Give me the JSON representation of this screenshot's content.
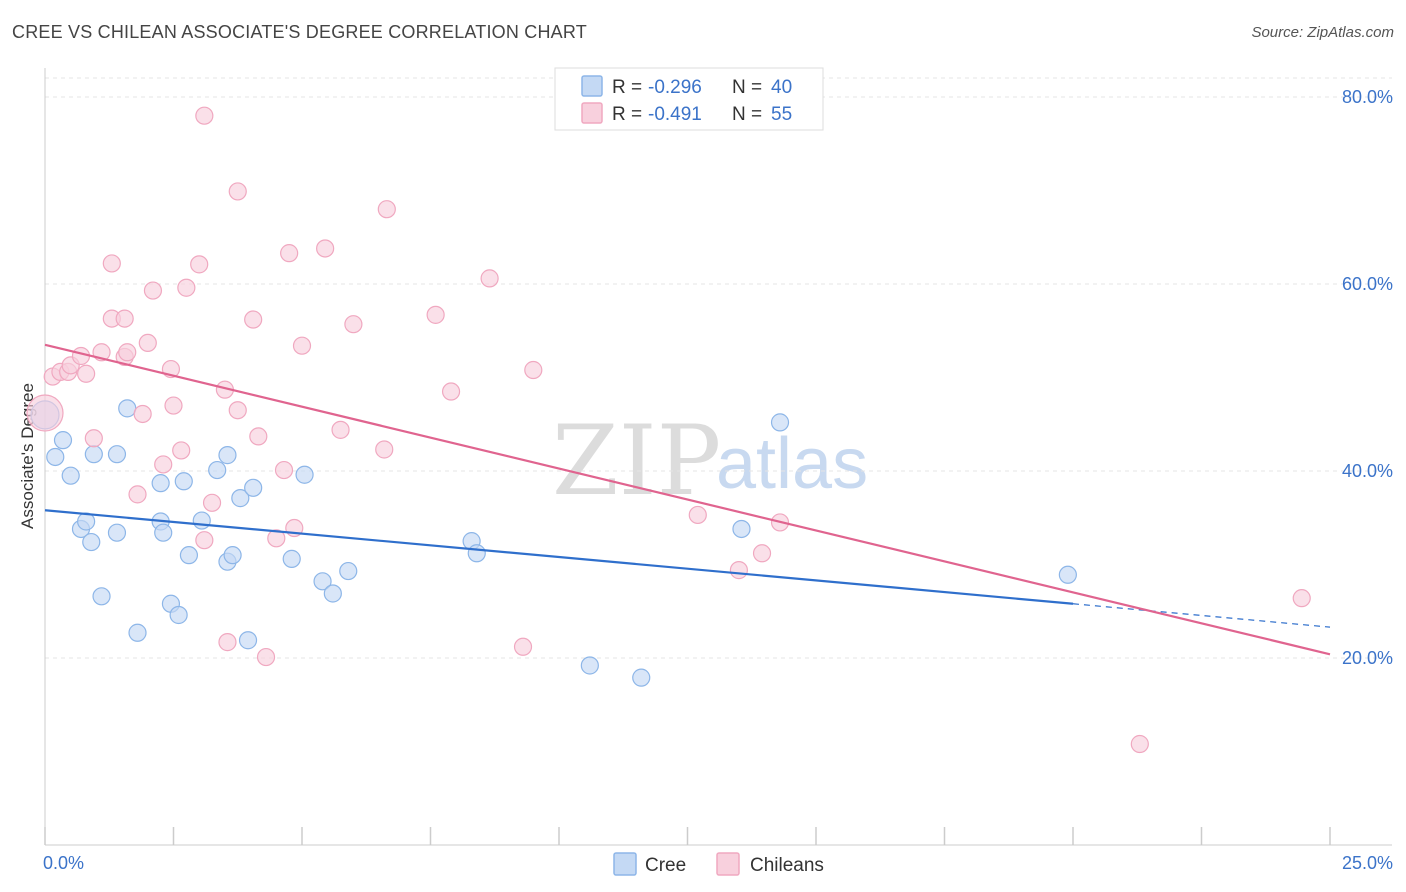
{
  "header": {
    "title": "CREE VS CHILEAN ASSOCIATE'S DEGREE CORRELATION CHART",
    "source": "Source: ZipAtlas.com"
  },
  "legend": {
    "rows": [
      {
        "r_label": "R =",
        "r_value": "-0.296",
        "n_label": "N =",
        "n_value": "40"
      },
      {
        "r_label": "R =",
        "r_value": "-0.491",
        "n_label": "N =",
        "n_value": "55"
      }
    ]
  },
  "watermark": {
    "zip": "ZIP",
    "atlas": "atlas"
  },
  "chart_data": {
    "type": "scatter",
    "title": "CREE VS CHILEAN ASSOCIATE'S DEGREE CORRELATION CHART",
    "xlabel": "",
    "ylabel": "Associate's Degree",
    "xlim": [
      0,
      25
    ],
    "ylim": [
      0,
      82
    ],
    "x_tick_labels": [
      {
        "value": 0,
        "label": "0.0%"
      },
      {
        "value": 25,
        "label": "25.0%"
      }
    ],
    "y_tick_labels": [
      {
        "value": 20,
        "label": "20.0%"
      },
      {
        "value": 40,
        "label": "40.0%"
      },
      {
        "value": 60,
        "label": "60.0%"
      },
      {
        "value": 80,
        "label": "80.0%"
      }
    ],
    "grid": true,
    "legend_position": "top-center",
    "series": [
      {
        "name": "Cree",
        "color": "#8db6e8",
        "fill": "#c4d9f4",
        "line_color": "#2f6fcc",
        "trend": {
          "x": [
            0,
            20,
            25
          ],
          "y": [
            35.8,
            25.8,
            23.3
          ],
          "solid_to": 20
        },
        "points": [
          [
            0.0,
            46.0
          ],
          [
            0.35,
            43.3
          ],
          [
            0.5,
            39.5
          ],
          [
            0.2,
            41.5
          ],
          [
            0.95,
            41.8
          ],
          [
            0.7,
            33.8
          ],
          [
            0.8,
            34.6
          ],
          [
            1.4,
            41.8
          ],
          [
            1.6,
            46.7
          ],
          [
            0.9,
            32.4
          ],
          [
            1.4,
            33.4
          ],
          [
            2.25,
            34.6
          ],
          [
            2.3,
            33.4
          ],
          [
            2.25,
            38.7
          ],
          [
            2.7,
            38.9
          ],
          [
            3.05,
            34.7
          ],
          [
            3.35,
            40.1
          ],
          [
            3.55,
            41.7
          ],
          [
            3.55,
            30.3
          ],
          [
            3.8,
            37.1
          ],
          [
            3.65,
            31.0
          ],
          [
            4.05,
            38.2
          ],
          [
            2.8,
            31.0
          ],
          [
            1.1,
            26.6
          ],
          [
            1.8,
            22.7
          ],
          [
            2.45,
            25.8
          ],
          [
            2.6,
            24.6
          ],
          [
            3.95,
            21.9
          ],
          [
            4.8,
            30.6
          ],
          [
            5.05,
            39.6
          ],
          [
            5.4,
            28.2
          ],
          [
            5.6,
            26.9
          ],
          [
            5.9,
            29.3
          ],
          [
            8.3,
            32.5
          ],
          [
            8.4,
            31.2
          ],
          [
            10.6,
            19.2
          ],
          [
            11.6,
            17.9
          ],
          [
            13.55,
            33.8
          ],
          [
            14.3,
            45.2
          ],
          [
            19.9,
            28.9
          ]
        ]
      },
      {
        "name": "Chileans",
        "color": "#f0a8c0",
        "fill": "#f8d0dd",
        "line_color": "#e0648f",
        "trend": {
          "x": [
            0,
            25
          ],
          "y": [
            53.5,
            20.4
          ],
          "solid_to": 25
        },
        "points": [
          [
            0.0,
            46.2
          ],
          [
            0.15,
            50.1
          ],
          [
            0.3,
            50.6
          ],
          [
            0.45,
            50.6
          ],
          [
            0.5,
            51.3
          ],
          [
            0.7,
            52.3
          ],
          [
            0.8,
            50.4
          ],
          [
            0.95,
            43.5
          ],
          [
            1.1,
            52.7
          ],
          [
            1.3,
            56.3
          ],
          [
            1.3,
            62.2
          ],
          [
            1.55,
            56.3
          ],
          [
            1.55,
            52.2
          ],
          [
            1.6,
            52.7
          ],
          [
            1.8,
            37.5
          ],
          [
            1.9,
            46.1
          ],
          [
            2.0,
            53.7
          ],
          [
            2.1,
            59.3
          ],
          [
            2.3,
            40.7
          ],
          [
            2.45,
            50.9
          ],
          [
            2.5,
            47.0
          ],
          [
            2.65,
            42.2
          ],
          [
            2.75,
            59.6
          ],
          [
            3.0,
            62.1
          ],
          [
            3.1,
            32.6
          ],
          [
            3.1,
            78.0
          ],
          [
            3.25,
            36.6
          ],
          [
            3.5,
            48.7
          ],
          [
            3.55,
            21.7
          ],
          [
            3.75,
            46.5
          ],
          [
            3.75,
            69.9
          ],
          [
            4.05,
            56.2
          ],
          [
            4.15,
            43.7
          ],
          [
            4.3,
            20.1
          ],
          [
            4.5,
            32.8
          ],
          [
            4.65,
            40.1
          ],
          [
            4.75,
            63.3
          ],
          [
            4.85,
            33.9
          ],
          [
            5.0,
            53.4
          ],
          [
            5.45,
            63.8
          ],
          [
            5.75,
            44.4
          ],
          [
            6.0,
            55.7
          ],
          [
            6.6,
            42.3
          ],
          [
            6.65,
            68.0
          ],
          [
            7.6,
            56.7
          ],
          [
            7.9,
            48.5
          ],
          [
            8.65,
            60.6
          ],
          [
            9.3,
            21.2
          ],
          [
            9.5,
            50.8
          ],
          [
            12.7,
            35.3
          ],
          [
            13.5,
            29.4
          ],
          [
            14.3,
            34.5
          ],
          [
            13.95,
            31.2
          ],
          [
            21.3,
            10.8
          ],
          [
            24.45,
            26.4
          ]
        ]
      }
    ]
  }
}
